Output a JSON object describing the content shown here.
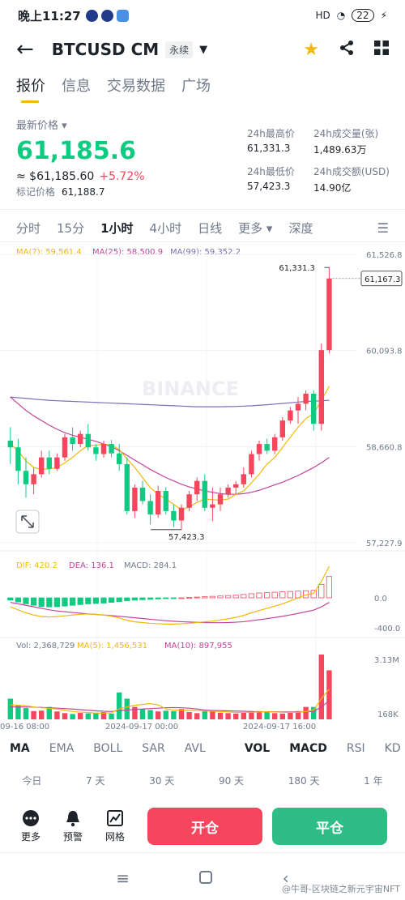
{
  "status_bar": {
    "time": "晚上11:27",
    "battery": "22",
    "network": "HD"
  },
  "header": {
    "pair": "BTCUSD CM",
    "tag": "永续"
  },
  "tabs": [
    "报价",
    "信息",
    "交易数据",
    "广场"
  ],
  "price": {
    "label": "最新价格",
    "last": "61,185.6",
    "usd": "≈ $61,185.60",
    "change": "+5.72%",
    "mark_label": "标记价格",
    "mark": "61,188.7"
  },
  "stats": {
    "high_label": "24h最高价",
    "high": "61,331.3",
    "vol_label": "24h成交量(张)",
    "vol": "1,489.63万",
    "low_label": "24h最低价",
    "low": "57,423.3",
    "amt_label": "24h成交额(USD)",
    "amt": "14.90亿"
  },
  "intervals": [
    "分时",
    "15分",
    "1小时",
    "4小时",
    "日线",
    "更多",
    "深度"
  ],
  "chart_data": {
    "type": "candlestick",
    "ma_legend": {
      "ma7": "MA(7): 59,561.4",
      "ma25": "MA(25): 58,500.9",
      "ma99": "MA(99): 59,352.2"
    },
    "price_axis": [
      "61,526.8",
      "60,093.8",
      "58,660.8",
      "57,227.9"
    ],
    "price_axis_values": [
      61526.8,
      60093.8,
      58660.8,
      57227.9
    ],
    "current_price_label": "61,167.3",
    "current_price": 61167.3,
    "high_marker": "61,331.3",
    "high_value": 61331.3,
    "low_marker": "57,423.3",
    "low_value": 57423.3,
    "watermark": "BINANCE",
    "candles": [
      [
        58750,
        58950,
        58400,
        58650
      ],
      [
        58650,
        58780,
        58100,
        58300
      ],
      [
        58300,
        58500,
        57900,
        58100
      ],
      [
        58100,
        58350,
        57950,
        58250
      ],
      [
        58250,
        58600,
        58200,
        58500
      ],
      [
        58500,
        58600,
        58250,
        58330
      ],
      [
        58330,
        58560,
        58300,
        58500
      ],
      [
        58500,
        58850,
        58450,
        58800
      ],
      [
        58800,
        58950,
        58600,
        58700
      ],
      [
        58700,
        58900,
        58650,
        58850
      ],
      [
        58850,
        59000,
        58600,
        58650
      ],
      [
        58650,
        58700,
        58450,
        58550
      ],
      [
        58550,
        58750,
        58500,
        58700
      ],
      [
        58700,
        58760,
        58500,
        58560
      ],
      [
        58560,
        58700,
        58300,
        58400
      ],
      [
        58400,
        58500,
        57650,
        57700
      ],
      [
        57700,
        58100,
        57600,
        58050
      ],
      [
        58050,
        58150,
        57800,
        57850
      ],
      [
        57850,
        57950,
        57500,
        57650
      ],
      [
        57650,
        58080,
        57600,
        58000
      ],
      [
        58000,
        58060,
        57650,
        57700
      ],
      [
        57700,
        57800,
        57460,
        57560
      ],
      [
        57560,
        57800,
        57423,
        57750
      ],
      [
        57750,
        58000,
        57700,
        57950
      ],
      [
        57950,
        58200,
        57850,
        58150
      ],
      [
        58150,
        58250,
        57700,
        57750
      ],
      [
        57750,
        58050,
        57550,
        57800
      ],
      [
        57800,
        58050,
        57700,
        57950
      ],
      [
        57950,
        58100,
        57900,
        58050
      ],
      [
        58050,
        58150,
        57950,
        58100
      ],
      [
        58100,
        58350,
        58050,
        58250
      ],
      [
        58250,
        58600,
        58200,
        58550
      ],
      [
        58550,
        58750,
        58450,
        58700
      ],
      [
        58700,
        58780,
        58550,
        58600
      ],
      [
        58600,
        58850,
        58550,
        58800
      ],
      [
        58800,
        59100,
        58750,
        59050
      ],
      [
        59050,
        59250,
        59000,
        59200
      ],
      [
        59200,
        59400,
        59000,
        59300
      ],
      [
        59300,
        59500,
        59200,
        59450
      ],
      [
        59450,
        59500,
        58900,
        59000
      ],
      [
        59000,
        60200,
        58900,
        60100
      ],
      [
        60100,
        61331,
        60050,
        61167
      ]
    ],
    "ma7": [
      58700,
      58600,
      58450,
      58350,
      58320,
      58330,
      58350,
      58420,
      58500,
      58600,
      58680,
      58680,
      58700,
      58680,
      58620,
      58480,
      58350,
      58200,
      58050,
      57950,
      57880,
      57800,
      57720,
      57760,
      57830,
      57880,
      57870,
      57860,
      57880,
      57950,
      58000,
      58120,
      58250,
      58400,
      58500,
      58650,
      58800,
      58950,
      59080,
      59150,
      59350,
      59561
    ],
    "ma25": [
      59400,
      59300,
      59200,
      59120,
      59050,
      58980,
      58920,
      58870,
      58830,
      58800,
      58770,
      58740,
      58700,
      58660,
      58600,
      58530,
      58460,
      58390,
      58320,
      58260,
      58200,
      58150,
      58100,
      58060,
      58030,
      58000,
      57980,
      57960,
      57950,
      57950,
      57960,
      57980,
      58010,
      58050,
      58090,
      58130,
      58180,
      58230,
      58290,
      58350,
      58420,
      58501
    ],
    "ma99": [
      59400,
      59390,
      59380,
      59370,
      59360,
      59350,
      59345,
      59340,
      59335,
      59330,
      59325,
      59320,
      59315,
      59310,
      59305,
      59300,
      59295,
      59290,
      59285,
      59280,
      59275,
      59270,
      59265,
      59260,
      59255,
      59255,
      59255,
      59255,
      59258,
      59260,
      59265,
      59270,
      59278,
      59285,
      59295,
      59305,
      59315,
      59325,
      59335,
      59340,
      59345,
      59352
    ],
    "macd_legend": {
      "dif": "DIF: 420.2",
      "dea": "DEA: 136.1",
      "macd": "MACD: 284.1"
    },
    "macd_axis": [
      "0.0",
      "-400.0"
    ],
    "macd_axis_values": [
      0,
      -400
    ],
    "macd_hist": [
      -30,
      -55,
      -80,
      -100,
      -115,
      -120,
      -118,
      -110,
      -100,
      -90,
      -80,
      -75,
      -70,
      -60,
      -50,
      -40,
      -30,
      -25,
      -20,
      -15,
      -10,
      -5,
      0,
      5,
      10,
      15,
      20,
      25,
      30,
      35,
      45,
      55,
      65,
      70,
      75,
      80,
      85,
      90,
      95,
      100,
      180,
      284
    ],
    "dif": [
      -120,
      -160,
      -200,
      -230,
      -250,
      -255,
      -250,
      -240,
      -230,
      -220,
      -215,
      -220,
      -230,
      -245,
      -270,
      -300,
      -320,
      -330,
      -340,
      -345,
      -350,
      -350,
      -345,
      -340,
      -330,
      -320,
      -310,
      -295,
      -280,
      -260,
      -235,
      -200,
      -170,
      -140,
      -110,
      -80,
      -40,
      0,
      40,
      60,
      220,
      420
    ],
    "dea": [
      -60,
      -80,
      -100,
      -120,
      -140,
      -160,
      -175,
      -185,
      -195,
      -205,
      -215,
      -222,
      -230,
      -238,
      -246,
      -256,
      -266,
      -276,
      -286,
      -295,
      -305,
      -312,
      -318,
      -323,
      -327,
      -330,
      -332,
      -332,
      -330,
      -325,
      -318,
      -305,
      -292,
      -278,
      -262,
      -246,
      -228,
      -208,
      -186,
      -164,
      -120,
      -60
    ],
    "vol_legend": {
      "vol": "Vol: 2,368,729",
      "ma5": "MA(5): 1,456,531",
      "ma10": "MA(10): 897,955"
    },
    "vol_axis": [
      "3.13M",
      "168K"
    ],
    "vol_axis_values": [
      3130000,
      168000
    ],
    "volume": [
      1000000,
      700000,
      550000,
      400000,
      420000,
      600000,
      380000,
      300000,
      260000,
      310000,
      290000,
      320000,
      350000,
      280000,
      1300000,
      1000000,
      600000,
      500000,
      450000,
      380000,
      420000,
      400000,
      500000,
      350000,
      300000,
      420000,
      380000,
      320000,
      300000,
      280000,
      350000,
      380000,
      400000,
      360000,
      300000,
      280000,
      350000,
      400000,
      600000,
      600000,
      3130000,
      2368729
    ],
    "vol_ma5": [
      700000,
      680000,
      660000,
      600000,
      560000,
      530000,
      500000,
      440000,
      380000,
      350000,
      330000,
      300000,
      300000,
      320000,
      500000,
      600000,
      680000,
      720000,
      760000,
      700000,
      500000,
      450000,
      440000,
      430000,
      420000,
      400000,
      390000,
      380000,
      360000,
      330000,
      330000,
      340000,
      360000,
      370000,
      360000,
      340000,
      330000,
      340000,
      380000,
      440000,
      1000000,
      1456531
    ],
    "vol_ma10": [
      600000,
      600000,
      600000,
      590000,
      580000,
      560000,
      540000,
      520000,
      500000,
      470000,
      440000,
      410000,
      390000,
      380000,
      420000,
      450000,
      480000,
      500000,
      520000,
      540000,
      560000,
      570000,
      560000,
      540000,
      500000,
      450000,
      430000,
      420000,
      410000,
      400000,
      390000,
      380000,
      370000,
      370000,
      370000,
      360000,
      360000,
      360000,
      370000,
      380000,
      600000,
      897955
    ],
    "time_axis": [
      "09-16 08:00",
      "2024-09-17 00:00",
      "2024-09-17 16:00"
    ]
  },
  "indicators": [
    "MA",
    "EMA",
    "BOLL",
    "SAR",
    "AVL",
    "VOL",
    "MACD",
    "RSI",
    "KD"
  ],
  "periods": [
    "今日",
    "7 天",
    "30 天",
    "90 天",
    "180 天",
    "1 年"
  ],
  "actions": {
    "more": "更多",
    "alert": "预警",
    "grid": "网格",
    "open": "开仓",
    "close": "平仓"
  },
  "watermark": "@牛哥-区块链之新元宇宙NFT",
  "colors": {
    "up": "#f6465d",
    "down": "#0ecb81",
    "accent": "#f0b90b",
    "ma7": "#f0b90b",
    "ma25": "#c2459b",
    "ma99": "#7b6fb5"
  }
}
